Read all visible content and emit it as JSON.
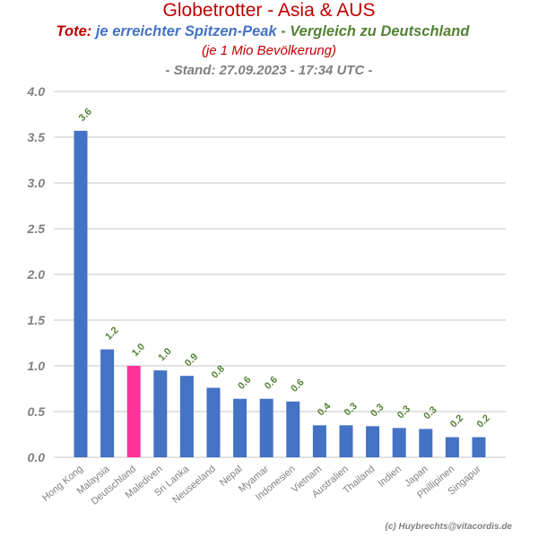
{
  "header": {
    "title": "Globetrotter - Asia & AUS",
    "subtitle_prefix": "Tote:",
    "subtitle_main": "je erreichter Spitzen-Peak",
    "subtitle_suffix": "- Vergleich zu Deutschland",
    "note": "(je 1 Mio Bevölkerung)",
    "timestamp": "- Stand: 27.09.2023 - 17:34 UTC -"
  },
  "credit": "(c) Huybrechts@vitacordis.de",
  "colors": {
    "title": "#c00000",
    "subtitle_main": "#4472c4",
    "subtitle_suffix": "#548235",
    "bar": "#4472c4",
    "bar_highlight": "#ff3399",
    "data_label": "#548235",
    "grid": "#d9d9d9",
    "tick": "#808080"
  },
  "chart_data": {
    "type": "bar",
    "categories": [
      "Hong Kong",
      "Malaysia",
      "Deutschland",
      "Malediven",
      "Sri Lanka",
      "Neuseeland",
      "Nepal",
      "Myamar",
      "Indonesien",
      "Vietnam",
      "Australien",
      "Thailand",
      "Indien",
      "Japan",
      "Phillipinen",
      "Singapur"
    ],
    "values": [
      3.57,
      1.18,
      1.0,
      0.95,
      0.89,
      0.76,
      0.64,
      0.64,
      0.61,
      0.35,
      0.35,
      0.34,
      0.32,
      0.31,
      0.22,
      0.22
    ],
    "data_labels": [
      "3.6",
      "1.2",
      "1.0",
      "1.0",
      "0.9",
      "0.8",
      "0.6",
      "0.6",
      "0.6",
      "0.4",
      "0.3",
      "0.3",
      "0.3",
      "0.3",
      "0.2",
      "0.2"
    ],
    "highlight_category": "Deutschland",
    "ylim": [
      0,
      4.0
    ],
    "yticks": [
      "0.0",
      "0.5",
      "1.0",
      "1.5",
      "2.0",
      "2.5",
      "3.0",
      "3.5",
      "4.0"
    ],
    "grid": true,
    "legend": "none"
  }
}
